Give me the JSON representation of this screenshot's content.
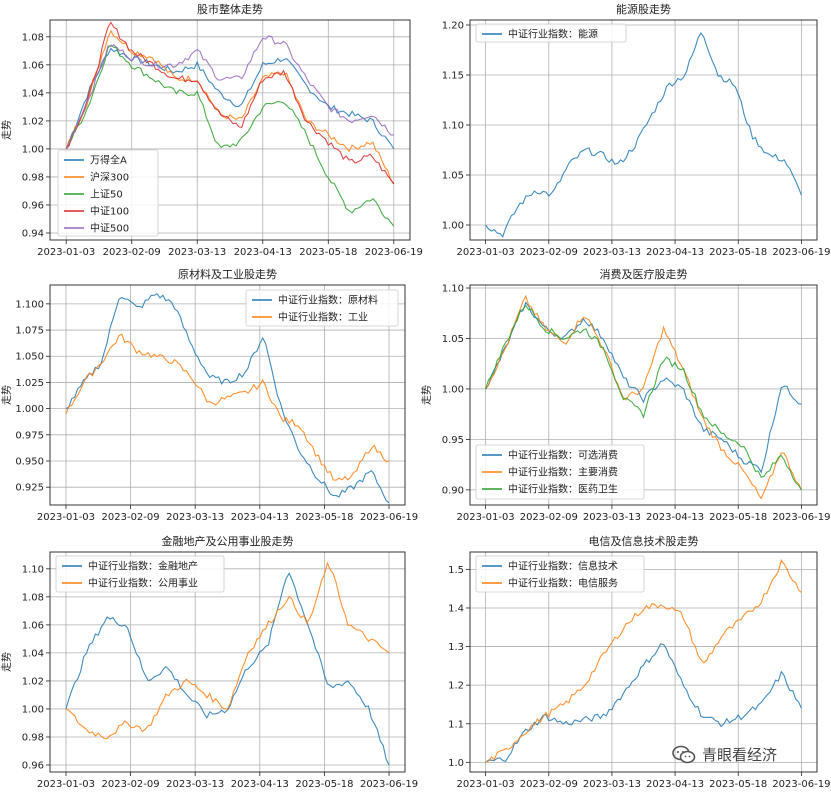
{
  "watermark": {
    "text": "青眼看经济",
    "icon": "wechat-icon"
  },
  "style": {
    "colors": [
      "#1f77b4",
      "#ff7f0e",
      "#2ca02c",
      "#d62728",
      "#9467bd"
    ],
    "grid": true
  },
  "chart_data": [
    {
      "type": "line",
      "title": "股市整体走势",
      "ylabel": "走势",
      "xlabel": "",
      "x_ticks": [
        "2023-01-03",
        "2023-02-09",
        "2023-03-13",
        "2023-04-13",
        "2023-05-18",
        "2023-06-19"
      ],
      "y_ticks": [
        "0.94",
        "0.96",
        "0.98",
        "1.00",
        "1.02",
        "1.04",
        "1.06",
        "1.08"
      ],
      "ylim": [
        0.935,
        1.092
      ],
      "legend": "lower-left",
      "series": [
        {
          "name": "万得全A",
          "values": [
            1.0,
            1.04,
            1.072,
            1.065,
            1.06,
            1.055,
            1.06,
            1.04,
            1.03,
            1.06,
            1.065,
            1.045,
            1.03,
            1.025,
            1.02,
            1.0
          ]
        },
        {
          "name": "沪深300",
          "values": [
            1.0,
            1.035,
            1.085,
            1.07,
            1.065,
            1.05,
            1.05,
            1.025,
            1.02,
            1.05,
            1.055,
            1.02,
            1.01,
            1.0,
            1.005,
            0.975
          ]
        },
        {
          "name": "上证50",
          "values": [
            1.0,
            1.03,
            1.075,
            1.06,
            1.05,
            1.04,
            1.04,
            1.0,
            1.005,
            1.03,
            1.035,
            1.01,
            0.98,
            0.955,
            0.965,
            0.945
          ]
        },
        {
          "name": "中证100",
          "values": [
            1.0,
            1.035,
            1.09,
            1.07,
            1.06,
            1.05,
            1.05,
            1.025,
            1.015,
            1.05,
            1.055,
            1.02,
            1.005,
            0.99,
            0.995,
            0.975
          ]
        },
        {
          "name": "中证500",
          "values": [
            1.0,
            1.035,
            1.075,
            1.065,
            1.06,
            1.06,
            1.07,
            1.05,
            1.05,
            1.08,
            1.075,
            1.05,
            1.03,
            1.02,
            1.025,
            1.01
          ]
        }
      ]
    },
    {
      "type": "line",
      "title": "能源股走势",
      "ylabel": "",
      "xlabel": "",
      "x_ticks": [
        "2023-01-03",
        "2023-02-09",
        "2023-03-13",
        "2023-04-13",
        "2023-05-18",
        "2023-06-19"
      ],
      "y_ticks": [
        "1.00",
        "1.05",
        "1.10",
        "1.15",
        "1.20"
      ],
      "ylim": [
        0.985,
        1.205
      ],
      "legend": "upper-left",
      "series": [
        {
          "name": "中证行业指数：能源",
          "values": [
            1.0,
            0.99,
            1.02,
            1.035,
            1.03,
            1.06,
            1.075,
            1.07,
            1.06,
            1.08,
            1.11,
            1.14,
            1.15,
            1.195,
            1.15,
            1.14,
            1.09,
            1.07,
            1.065,
            1.03
          ]
        }
      ]
    },
    {
      "type": "line",
      "title": "原材料及工业股走势",
      "ylabel": "走势",
      "xlabel": "",
      "x_ticks": [
        "2023-01-03",
        "2023-02-09",
        "2023-03-13",
        "2023-04-13",
        "2023-05-18",
        "2023-06-19"
      ],
      "y_ticks": [
        "0.925",
        "0.950",
        "0.975",
        "1.000",
        "1.025",
        "1.050",
        "1.075",
        "1.100"
      ],
      "ylim": [
        0.908,
        1.118
      ],
      "legend": "upper-right",
      "series": [
        {
          "name": "中证行业指数：原材料",
          "values": [
            1.0,
            1.025,
            1.045,
            1.11,
            1.095,
            1.11,
            1.1,
            1.06,
            1.03,
            1.025,
            1.035,
            1.07,
            1.0,
            0.96,
            0.935,
            0.915,
            0.925,
            0.94,
            0.91
          ]
        },
        {
          "name": "中证行业指数：工业",
          "values": [
            0.995,
            1.025,
            1.045,
            1.07,
            1.055,
            1.05,
            1.045,
            1.03,
            1.005,
            1.01,
            1.015,
            1.025,
            0.99,
            0.985,
            0.955,
            0.93,
            0.935,
            0.965,
            0.95
          ]
        }
      ]
    },
    {
      "type": "line",
      "title": "消费及医疗股走势",
      "ylabel": "走势",
      "xlabel": "",
      "x_ticks": [
        "2023-01-03",
        "2023-02-09",
        "2023-03-13",
        "2023-04-13",
        "2023-05-18",
        "2023-06-19"
      ],
      "y_ticks": [
        "0.90",
        "0.95",
        "1.00",
        "1.05",
        "1.10"
      ],
      "ylim": [
        0.885,
        1.103
      ],
      "legend": "lower-left",
      "series": [
        {
          "name": "中证行业指数：可选消费",
          "values": [
            1.0,
            1.04,
            1.085,
            1.06,
            1.05,
            1.07,
            1.05,
            1.01,
            0.99,
            1.01,
            1.0,
            0.96,
            0.95,
            0.93,
            0.92,
            1.005,
            0.985
          ]
        },
        {
          "name": "中证行业指数：主要消费",
          "values": [
            1.0,
            1.04,
            1.09,
            1.06,
            1.045,
            1.075,
            1.04,
            0.99,
            1.0,
            1.06,
            1.02,
            0.97,
            0.94,
            0.92,
            0.89,
            0.94,
            0.9
          ]
        },
        {
          "name": "中证行业指数：医药卫生",
          "values": [
            1.0,
            1.045,
            1.085,
            1.06,
            1.05,
            1.06,
            1.04,
            0.99,
            0.975,
            1.03,
            1.02,
            0.975,
            0.955,
            0.945,
            0.91,
            0.935,
            0.9
          ]
        }
      ]
    },
    {
      "type": "line",
      "title": "金融地产及公用事业股走势",
      "ylabel": "走势",
      "xlabel": "",
      "x_ticks": [
        "2023-01-03",
        "2023-02-09",
        "2023-03-13",
        "2023-04-13",
        "2023-05-18",
        "2023-06-19"
      ],
      "y_ticks": [
        "0.96",
        "0.98",
        "1.00",
        "1.02",
        "1.04",
        "1.06",
        "1.08",
        "1.10"
      ],
      "ylim": [
        0.955,
        1.112
      ],
      "legend": "upper-left",
      "series": [
        {
          "name": "中证行业指数：金融地产",
          "values": [
            1.0,
            1.04,
            1.065,
            1.06,
            1.02,
            1.03,
            1.01,
            0.995,
            1.0,
            1.03,
            1.045,
            1.1,
            1.06,
            1.015,
            1.02,
            1.0,
            0.96
          ]
        },
        {
          "name": "中证行业指数：公用事业",
          "values": [
            1.0,
            0.985,
            0.98,
            0.99,
            0.985,
            1.01,
            1.02,
            1.01,
            1.0,
            1.04,
            1.06,
            1.08,
            1.06,
            1.105,
            1.06,
            1.05,
            1.04
          ]
        }
      ]
    },
    {
      "type": "line",
      "title": "电信及信息技术股走势",
      "ylabel": "",
      "xlabel": "",
      "x_ticks": [
        "2023-01-03",
        "2023-02-09",
        "2023-03-13",
        "2023-04-13",
        "2023-05-18",
        "2023-06-19"
      ],
      "y_ticks": [
        "1.0",
        "1.1",
        "1.2",
        "1.3",
        "1.4",
        "1.5"
      ],
      "ylim": [
        0.975,
        1.545
      ],
      "legend": "upper-left",
      "series": [
        {
          "name": "中证行业指数：信息技术",
          "values": [
            1.0,
            1.01,
            1.08,
            1.12,
            1.1,
            1.11,
            1.12,
            1.18,
            1.25,
            1.31,
            1.2,
            1.12,
            1.1,
            1.12,
            1.15,
            1.23,
            1.14
          ]
        },
        {
          "name": "中证行业指数：电信服务",
          "values": [
            1.0,
            1.03,
            1.08,
            1.12,
            1.15,
            1.2,
            1.28,
            1.35,
            1.4,
            1.41,
            1.38,
            1.25,
            1.33,
            1.37,
            1.42,
            1.52,
            1.44
          ]
        }
      ]
    }
  ]
}
